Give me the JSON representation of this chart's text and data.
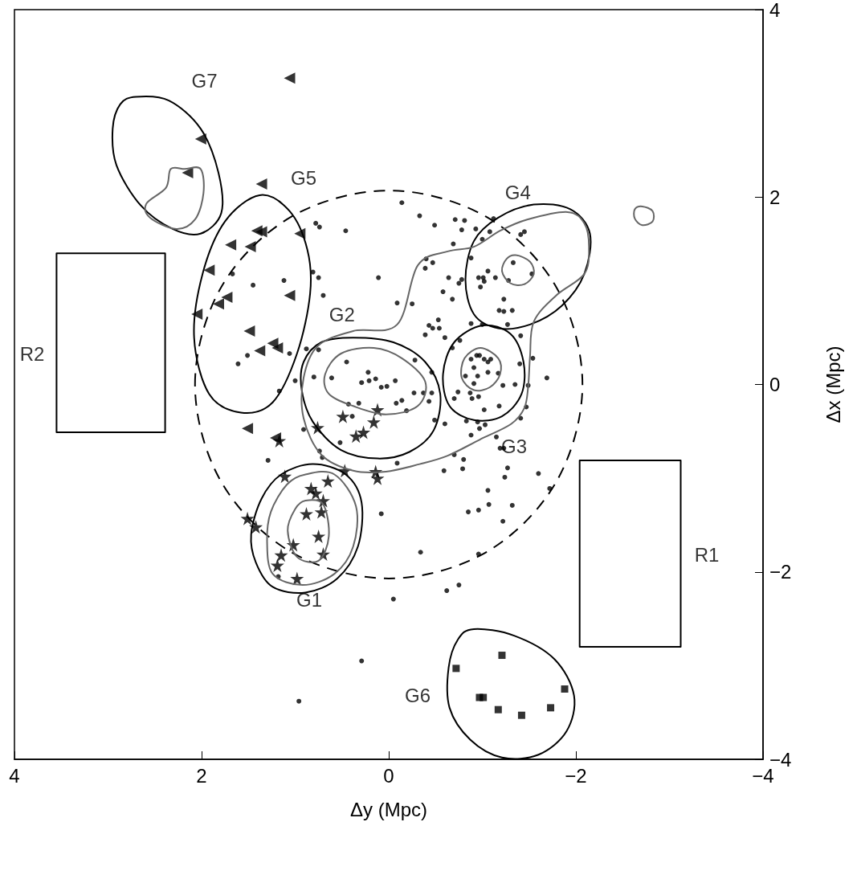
{
  "chart_data": {
    "type": "scatter",
    "xlabel": "Δy (Mpc)",
    "ylabel": "Δx (Mpc)",
    "xlim": [
      4,
      -4
    ],
    "xticks": [
      4,
      2,
      0,
      -2,
      -4
    ],
    "ylim": [
      -4,
      4
    ],
    "yticks": [
      -4,
      -2,
      0,
      2,
      4
    ],
    "grid": false,
    "series": [
      {
        "type": "scatter",
        "marker": "circle",
        "color": "#000000",
        "x": [
          0.78,
          0.74,
          0.46,
          1.67,
          1.45,
          1.12,
          0.81,
          0.75,
          0.7,
          0.11,
          1.61,
          1.51,
          1.06,
          0.88,
          0.75,
          1.0,
          0.8,
          0.61,
          0.45,
          0.22,
          0.29,
          0.21,
          0.14,
          0.08,
          0.02,
          1.17,
          0.91,
          0.43,
          0.32,
          0.52,
          0.74,
          0.71,
          1.29,
          0.08,
          1.18,
          0.39,
          -0.14,
          -0.33,
          -0.49,
          -0.71,
          -0.81,
          -0.78,
          -0.93,
          -1.12,
          -0.69,
          -1.0,
          -1.08,
          -1.41,
          -1.45,
          -0.4,
          -0.47,
          -0.39,
          -0.88,
          -1.06,
          -1.33,
          -1.53,
          -0.64,
          -0.78,
          -0.75,
          -0.96,
          -1.01,
          -1.02,
          -0.98,
          -1.14,
          -1.28,
          -0.58,
          -0.68,
          -1.23,
          -0.09,
          -0.25,
          -1.18,
          -1.23,
          -1.32,
          -0.53,
          -0.43,
          -0.47,
          -0.54,
          -0.39,
          -0.6,
          -0.88,
          -1.0,
          -1.27,
          -1.41,
          -0.76,
          -0.68,
          -0.28,
          -0.46,
          -0.07,
          -0.88,
          -0.94,
          -0.97,
          -1.02,
          -1.06,
          -1.09,
          -0.91,
          -1.06,
          -0.82,
          -0.95,
          -0.91,
          -1.17,
          -1.4,
          -1.54,
          -1.69,
          -1.22,
          -1.35,
          -1.49,
          -0.46,
          -0.27,
          -0.37,
          -0.74,
          -0.87,
          -0.08,
          -0.14,
          -0.19,
          -0.43,
          -0.49,
          -0.6,
          -0.7,
          -0.89,
          -0.96,
          -1.02,
          -1.18,
          -1.47,
          -1.41,
          -0.83,
          -0.95,
          -1.03,
          -0.97,
          -0.88,
          -1.15,
          -1.19,
          -1.23,
          -0.09,
          -0.7,
          -0.8,
          -0.59,
          -0.79,
          -1.27,
          -1.24,
          -1.6,
          -1.72,
          -1.06,
          -1.07,
          -1.32,
          -0.85,
          -0.96,
          -1.22,
          -0.34,
          -0.96,
          -0.75,
          -0.62,
          -0.05,
          0.29,
          0.96
        ],
        "values": [
          1.72,
          1.68,
          1.64,
          1.18,
          1.06,
          1.11,
          1.2,
          1.14,
          0.95,
          1.14,
          0.22,
          0.31,
          0.33,
          0.38,
          0.37,
          0.04,
          0.08,
          0.07,
          0.24,
          0.13,
          0.02,
          0.04,
          0.06,
          -0.03,
          -0.02,
          -0.07,
          -0.48,
          -0.21,
          -0.2,
          -0.62,
          -0.71,
          -0.78,
          -0.81,
          -1.38,
          -2.05,
          -0.34,
          1.94,
          1.8,
          1.7,
          1.76,
          1.75,
          1.65,
          1.66,
          1.77,
          1.5,
          1.55,
          1.63,
          1.6,
          1.63,
          1.34,
          1.3,
          1.24,
          1.35,
          1.21,
          1.3,
          1.18,
          1.14,
          1.12,
          1.08,
          1.14,
          1.14,
          1.1,
          1.04,
          1.14,
          1.11,
          0.99,
          0.91,
          0.91,
          0.87,
          0.86,
          0.79,
          0.78,
          0.79,
          0.69,
          0.63,
          0.6,
          0.6,
          0.53,
          0.5,
          0.65,
          0.64,
          0.64,
          0.52,
          0.47,
          0.39,
          0.26,
          0.13,
          0.04,
          0.27,
          0.31,
          0.31,
          0.27,
          0.24,
          0.27,
          0.18,
          0.13,
          0.09,
          0.09,
          0.01,
          0.12,
          0.22,
          0.28,
          0.07,
          -0.01,
          0.0,
          -0.01,
          -0.09,
          -0.09,
          -0.09,
          -0.08,
          -0.09,
          -0.2,
          -0.17,
          -0.28,
          -0.18,
          -0.38,
          -0.42,
          -0.15,
          -0.15,
          -0.13,
          -0.27,
          -0.23,
          -0.24,
          -0.36,
          -0.39,
          -0.4,
          -0.43,
          -0.47,
          -0.54,
          -0.56,
          -0.68,
          -0.68,
          -0.84,
          -0.75,
          -0.8,
          -0.92,
          -0.9,
          -0.89,
          -0.99,
          -0.95,
          -1.11,
          -1.13,
          -1.28,
          -1.29,
          -1.36,
          -1.34,
          -1.46,
          -1.79,
          -1.81,
          -2.14,
          -2.2,
          -2.29,
          -2.95,
          -3.38
        ]
      },
      {
        "type": "scatter",
        "marker": "star",
        "color": "#000000",
        "x": [
          0.76,
          0.49,
          0.12,
          0.16,
          0.35,
          0.27,
          1.17,
          1.11,
          0.47,
          0.14,
          0.12,
          0.65,
          0.83,
          0.78,
          0.7,
          0.72,
          0.88,
          1.51,
          1.42,
          0.75,
          1.02,
          1.15,
          0.7,
          1.19,
          0.98
        ],
        "values": [
          -0.46,
          -0.34,
          -0.27,
          -0.4,
          -0.55,
          -0.51,
          -0.6,
          -0.98,
          -0.92,
          -0.93,
          -1.0,
          -1.03,
          -1.11,
          -1.16,
          -1.24,
          -1.36,
          -1.38,
          -1.43,
          -1.52,
          -1.62,
          -1.71,
          -1.82,
          -1.81,
          -1.93,
          -2.07
        ]
      },
      {
        "type": "scatter",
        "marker": "triangle",
        "color": "#000000",
        "x": [
          1.41,
          1.36,
          1.69,
          1.48,
          1.92,
          0.95,
          1.06,
          1.73,
          1.82,
          2.05,
          1.49,
          1.38,
          1.24,
          1.19,
          2.01,
          2.15,
          1.36,
          1.51,
          1.21,
          1.06
        ],
        "values": [
          1.64,
          1.63,
          1.49,
          1.47,
          1.22,
          1.61,
          0.95,
          0.93,
          0.86,
          0.75,
          0.57,
          0.36,
          0.44,
          0.39,
          2.62,
          2.26,
          2.14,
          -0.47,
          -0.57,
          3.27
        ]
      },
      {
        "type": "scatter",
        "marker": "square",
        "color": "#000000",
        "x": [
          -0.72,
          -1.21,
          -0.97,
          -1.01,
          -1.17,
          -1.42,
          -1.73,
          -1.88
        ],
        "values": [
          -3.03,
          -2.89,
          -3.34,
          -3.34,
          -3.47,
          -3.53,
          -3.45,
          -3.25
        ]
      }
    ],
    "annotations": [
      "G1",
      "G2",
      "G3",
      "G4",
      "G5",
      "G6",
      "G7",
      "R1",
      "R2"
    ]
  }
}
